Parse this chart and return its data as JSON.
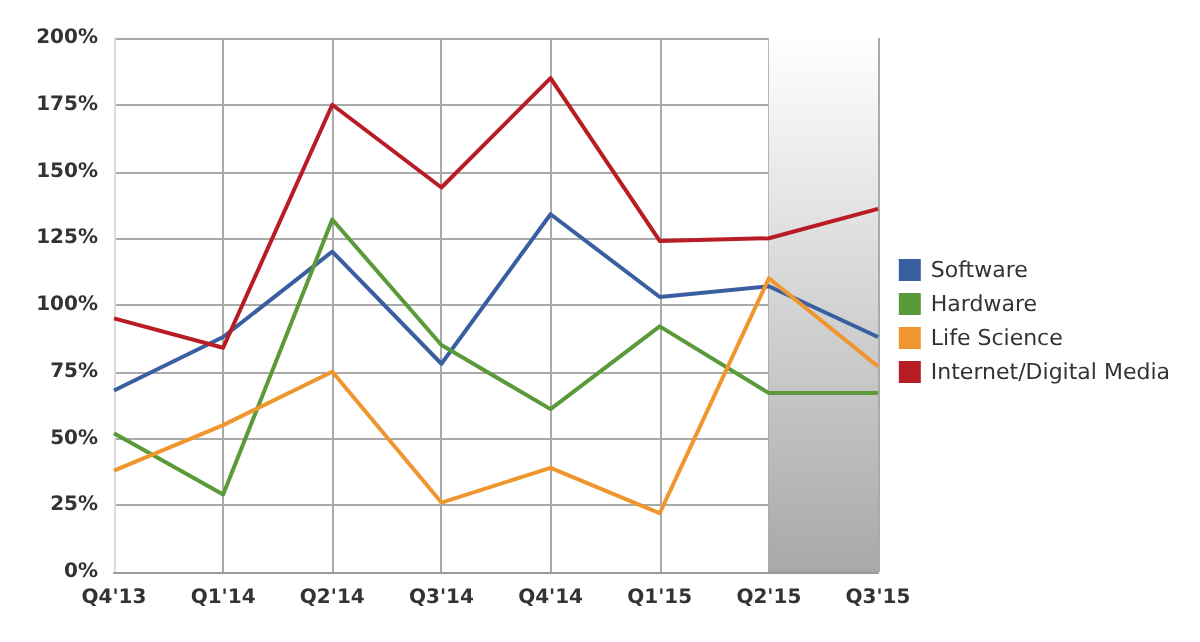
{
  "chart_data": {
    "type": "line",
    "categories": [
      "Q4'13",
      "Q1'14",
      "Q2'14",
      "Q3'14",
      "Q4'14",
      "Q1'15",
      "Q2'15",
      "Q3'15"
    ],
    "series": [
      {
        "name": "Software",
        "color": "#3a5fa0",
        "values": [
          68,
          88,
          120,
          78,
          134,
          103,
          107,
          88
        ]
      },
      {
        "name": "Hardware",
        "color": "#5a9a3a",
        "values": [
          52,
          29,
          132,
          85,
          61,
          92,
          67,
          67
        ]
      },
      {
        "name": "Life Science",
        "color": "#f0962e",
        "values": [
          38,
          55,
          75,
          26,
          39,
          22,
          110,
          77
        ]
      },
      {
        "name": "Internet/Digital Media",
        "color": "#b81c24",
        "values": [
          95,
          84,
          175,
          144,
          185,
          124,
          125,
          136
        ]
      }
    ],
    "ylim": [
      0,
      200
    ],
    "yticks": [
      {
        "value": 0,
        "label": "0%"
      },
      {
        "value": 25,
        "label": "25%"
      },
      {
        "value": 50,
        "label": "50%"
      },
      {
        "value": 75,
        "label": "75%"
      },
      {
        "value": 100,
        "label": "100%"
      },
      {
        "value": 125,
        "label": "125%"
      },
      {
        "value": 150,
        "label": "150%"
      },
      {
        "value": 175,
        "label": "175%"
      },
      {
        "value": 200,
        "label": "200%"
      }
    ],
    "bands": [
      {
        "axis": "x",
        "from": "Q2'15",
        "to": "Q3'15",
        "color": "#a8a8a8"
      }
    ],
    "grid": true,
    "legend": "right",
    "marker": "none",
    "line_style": "solid"
  }
}
